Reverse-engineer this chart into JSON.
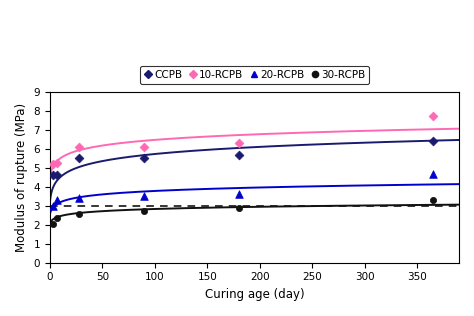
{
  "xlabel": "Curing age (day)",
  "ylabel": "Modulus of rupture (MPa)",
  "xlim": [
    0,
    390
  ],
  "ylim": [
    0,
    9
  ],
  "xticks": [
    0,
    50,
    100,
    150,
    200,
    250,
    300,
    350
  ],
  "yticks": [
    0,
    1,
    2,
    3,
    4,
    5,
    6,
    7,
    8,
    9
  ],
  "dashed_y": 3.0,
  "series": [
    {
      "label": "CCPB",
      "color": "#1a1a6e",
      "marker": "D",
      "marker_size": 4.5,
      "scatter_x": [
        3,
        7,
        28,
        90,
        180,
        365
      ],
      "scatter_y": [
        4.6,
        4.6,
        5.5,
        5.5,
        5.65,
        6.4
      ],
      "curve_a": 3.2,
      "curve_b": 0.65
    },
    {
      "label": "10-RCPB",
      "color": "#ff69b4",
      "marker": "D",
      "marker_size": 4.5,
      "scatter_x": [
        3,
        7,
        28,
        90,
        180,
        365
      ],
      "scatter_y": [
        5.2,
        5.25,
        6.1,
        6.1,
        6.3,
        7.7
      ],
      "curve_a": 4.45,
      "curve_b": 0.58
    },
    {
      "label": "20-RCPB",
      "color": "#0000cc",
      "marker": "^",
      "marker_size": 5.5,
      "scatter_x": [
        3,
        7,
        28,
        90,
        180,
        365
      ],
      "scatter_y": [
        3.0,
        3.3,
        3.4,
        3.5,
        3.6,
        4.65
      ],
      "curve_a": 2.5,
      "curve_b": 0.28
    },
    {
      "label": "30-RCPB",
      "color": "#111111",
      "marker": "o",
      "marker_size": 4.5,
      "scatter_x": [
        3,
        7,
        28,
        90,
        180,
        365
      ],
      "scatter_y": [
        2.05,
        2.35,
        2.55,
        2.7,
        2.9,
        3.3
      ],
      "curve_a": 1.05,
      "curve_b": 0.18
    }
  ]
}
